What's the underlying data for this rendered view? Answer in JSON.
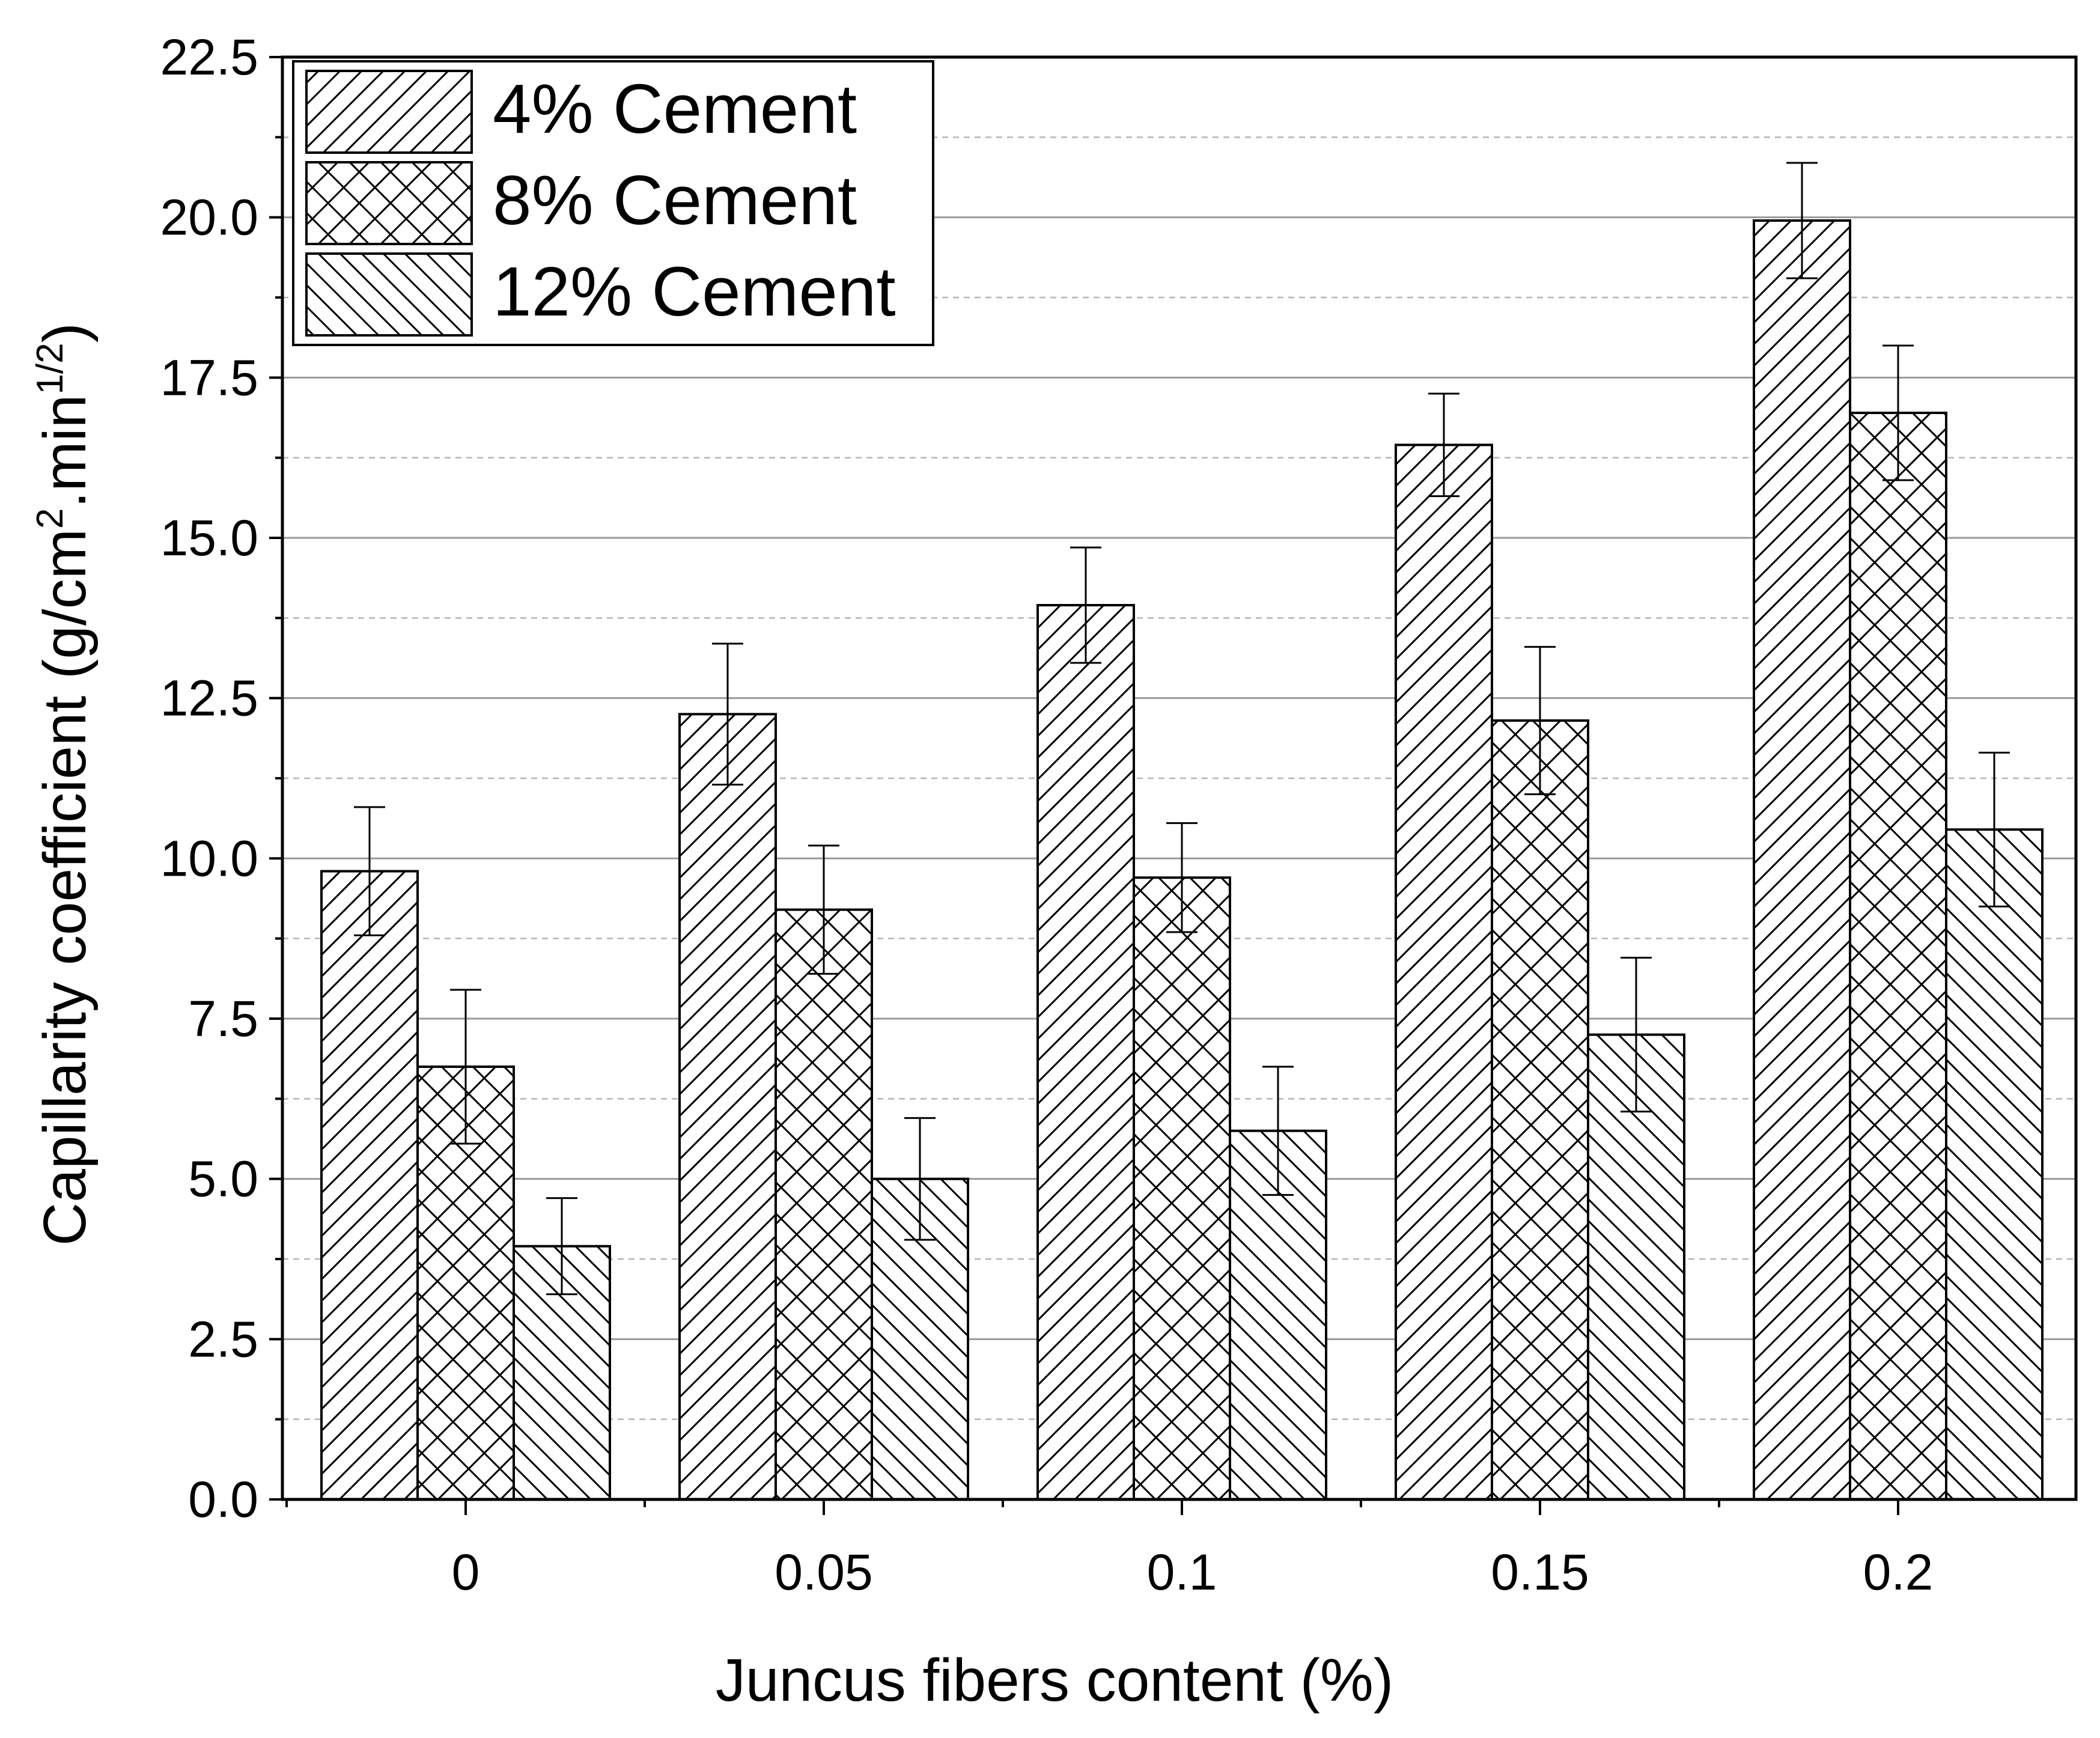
{
  "chart_data": {
    "type": "bar",
    "title": "",
    "xlabel": "Juncus fibers content (%)",
    "ylabel_main": "Capillarity coefficient (g/cm",
    "ylabel_sup1": "2",
    "ylabel_mid": ".min",
    "ylabel_sup2": "1/2",
    "ylabel_end": ")",
    "categories": [
      "0",
      "0.05",
      "0.1",
      "0.15",
      "0.2"
    ],
    "ylim": [
      0,
      22.5
    ],
    "yticks": [
      "0.0",
      "2.5",
      "5.0",
      "7.5",
      "10.0",
      "12.5",
      "15.0",
      "17.5",
      "20.0",
      "22.5"
    ],
    "grid": "horizontal",
    "legend_position": "top-left",
    "series": [
      {
        "name": "4% Cement",
        "pattern": "diagonal-forward",
        "values": [
          9.8,
          12.25,
          13.95,
          16.45,
          19.95
        ],
        "errors": [
          1.0,
          1.1,
          0.9,
          0.8,
          0.9
        ]
      },
      {
        "name": "8% Cement",
        "pattern": "crosshatch",
        "values": [
          6.75,
          9.2,
          9.7,
          12.15,
          16.95
        ],
        "errors": [
          1.2,
          1.0,
          0.85,
          1.15,
          1.05
        ]
      },
      {
        "name": "12% Cement",
        "pattern": "diagonal-backward",
        "values": [
          3.95,
          5.0,
          5.75,
          7.25,
          10.45
        ],
        "errors": [
          0.75,
          0.95,
          1.0,
          1.2,
          1.2
        ]
      }
    ]
  }
}
